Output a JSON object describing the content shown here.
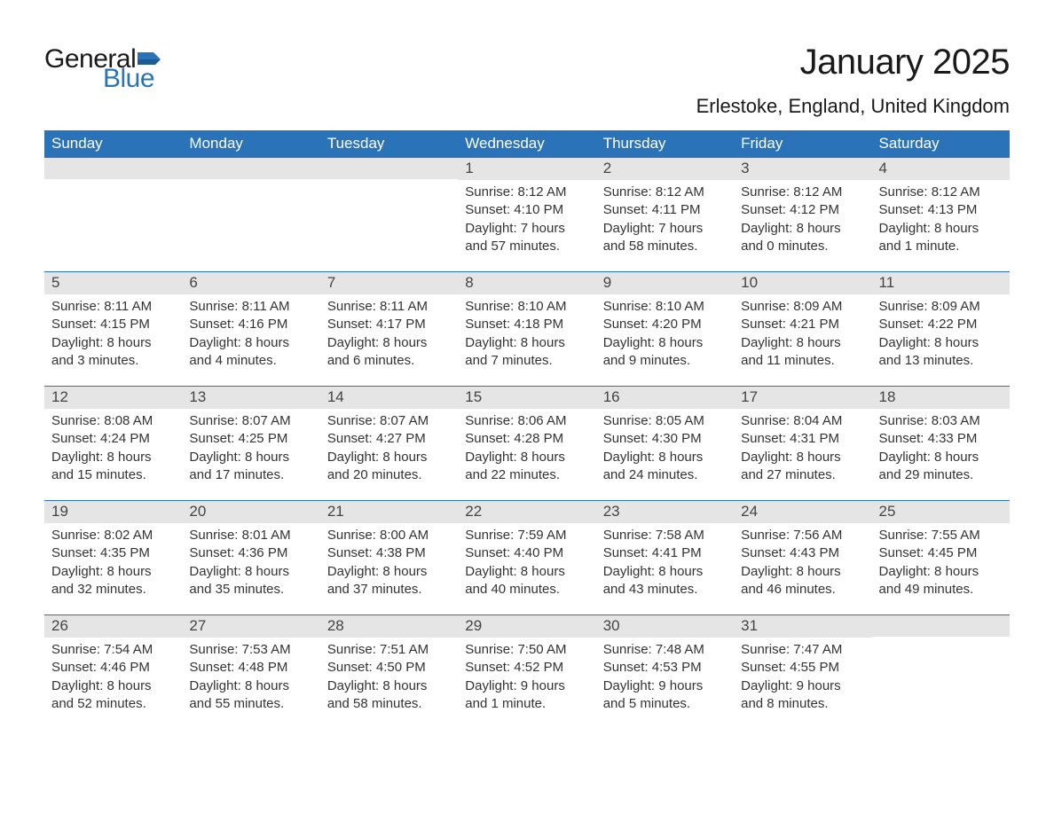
{
  "logo": {
    "text_general": "General",
    "text_blue": "Blue",
    "flag_color": "#2a73b8"
  },
  "title": "January 2025",
  "location": "Erlestoke, England, United Kingdom",
  "weekdays": [
    "Sunday",
    "Monday",
    "Tuesday",
    "Wednesday",
    "Thursday",
    "Friday",
    "Saturday"
  ],
  "colors": {
    "header_bg": "#2a73b8",
    "header_text": "#ffffff",
    "daynum_bg": "#e5e5e5",
    "daynum_text": "#444444",
    "body_text": "#333333",
    "divider": "#2a73b8"
  },
  "weeks": [
    [
      {
        "day": "",
        "lines": []
      },
      {
        "day": "",
        "lines": []
      },
      {
        "day": "",
        "lines": []
      },
      {
        "day": "1",
        "lines": [
          "Sunrise: 8:12 AM",
          "Sunset: 4:10 PM",
          "Daylight: 7 hours and 57 minutes."
        ]
      },
      {
        "day": "2",
        "lines": [
          "Sunrise: 8:12 AM",
          "Sunset: 4:11 PM",
          "Daylight: 7 hours and 58 minutes."
        ]
      },
      {
        "day": "3",
        "lines": [
          "Sunrise: 8:12 AM",
          "Sunset: 4:12 PM",
          "Daylight: 8 hours and 0 minutes."
        ]
      },
      {
        "day": "4",
        "lines": [
          "Sunrise: 8:12 AM",
          "Sunset: 4:13 PM",
          "Daylight: 8 hours and 1 minute."
        ]
      }
    ],
    [
      {
        "day": "5",
        "lines": [
          "Sunrise: 8:11 AM",
          "Sunset: 4:15 PM",
          "Daylight: 8 hours and 3 minutes."
        ]
      },
      {
        "day": "6",
        "lines": [
          "Sunrise: 8:11 AM",
          "Sunset: 4:16 PM",
          "Daylight: 8 hours and 4 minutes."
        ]
      },
      {
        "day": "7",
        "lines": [
          "Sunrise: 8:11 AM",
          "Sunset: 4:17 PM",
          "Daylight: 8 hours and 6 minutes."
        ]
      },
      {
        "day": "8",
        "lines": [
          "Sunrise: 8:10 AM",
          "Sunset: 4:18 PM",
          "Daylight: 8 hours and 7 minutes."
        ]
      },
      {
        "day": "9",
        "lines": [
          "Sunrise: 8:10 AM",
          "Sunset: 4:20 PM",
          "Daylight: 8 hours and 9 minutes."
        ]
      },
      {
        "day": "10",
        "lines": [
          "Sunrise: 8:09 AM",
          "Sunset: 4:21 PM",
          "Daylight: 8 hours and 11 minutes."
        ]
      },
      {
        "day": "11",
        "lines": [
          "Sunrise: 8:09 AM",
          "Sunset: 4:22 PM",
          "Daylight: 8 hours and 13 minutes."
        ]
      }
    ],
    [
      {
        "day": "12",
        "lines": [
          "Sunrise: 8:08 AM",
          "Sunset: 4:24 PM",
          "Daylight: 8 hours and 15 minutes."
        ]
      },
      {
        "day": "13",
        "lines": [
          "Sunrise: 8:07 AM",
          "Sunset: 4:25 PM",
          "Daylight: 8 hours and 17 minutes."
        ]
      },
      {
        "day": "14",
        "lines": [
          "Sunrise: 8:07 AM",
          "Sunset: 4:27 PM",
          "Daylight: 8 hours and 20 minutes."
        ]
      },
      {
        "day": "15",
        "lines": [
          "Sunrise: 8:06 AM",
          "Sunset: 4:28 PM",
          "Daylight: 8 hours and 22 minutes."
        ]
      },
      {
        "day": "16",
        "lines": [
          "Sunrise: 8:05 AM",
          "Sunset: 4:30 PM",
          "Daylight: 8 hours and 24 minutes."
        ]
      },
      {
        "day": "17",
        "lines": [
          "Sunrise: 8:04 AM",
          "Sunset: 4:31 PM",
          "Daylight: 8 hours and 27 minutes."
        ]
      },
      {
        "day": "18",
        "lines": [
          "Sunrise: 8:03 AM",
          "Sunset: 4:33 PM",
          "Daylight: 8 hours and 29 minutes."
        ]
      }
    ],
    [
      {
        "day": "19",
        "lines": [
          "Sunrise: 8:02 AM",
          "Sunset: 4:35 PM",
          "Daylight: 8 hours and 32 minutes."
        ]
      },
      {
        "day": "20",
        "lines": [
          "Sunrise: 8:01 AM",
          "Sunset: 4:36 PM",
          "Daylight: 8 hours and 35 minutes."
        ]
      },
      {
        "day": "21",
        "lines": [
          "Sunrise: 8:00 AM",
          "Sunset: 4:38 PM",
          "Daylight: 8 hours and 37 minutes."
        ]
      },
      {
        "day": "22",
        "lines": [
          "Sunrise: 7:59 AM",
          "Sunset: 4:40 PM",
          "Daylight: 8 hours and 40 minutes."
        ]
      },
      {
        "day": "23",
        "lines": [
          "Sunrise: 7:58 AM",
          "Sunset: 4:41 PM",
          "Daylight: 8 hours and 43 minutes."
        ]
      },
      {
        "day": "24",
        "lines": [
          "Sunrise: 7:56 AM",
          "Sunset: 4:43 PM",
          "Daylight: 8 hours and 46 minutes."
        ]
      },
      {
        "day": "25",
        "lines": [
          "Sunrise: 7:55 AM",
          "Sunset: 4:45 PM",
          "Daylight: 8 hours and 49 minutes."
        ]
      }
    ],
    [
      {
        "day": "26",
        "lines": [
          "Sunrise: 7:54 AM",
          "Sunset: 4:46 PM",
          "Daylight: 8 hours and 52 minutes."
        ]
      },
      {
        "day": "27",
        "lines": [
          "Sunrise: 7:53 AM",
          "Sunset: 4:48 PM",
          "Daylight: 8 hours and 55 minutes."
        ]
      },
      {
        "day": "28",
        "lines": [
          "Sunrise: 7:51 AM",
          "Sunset: 4:50 PM",
          "Daylight: 8 hours and 58 minutes."
        ]
      },
      {
        "day": "29",
        "lines": [
          "Sunrise: 7:50 AM",
          "Sunset: 4:52 PM",
          "Daylight: 9 hours and 1 minute."
        ]
      },
      {
        "day": "30",
        "lines": [
          "Sunrise: 7:48 AM",
          "Sunset: 4:53 PM",
          "Daylight: 9 hours and 5 minutes."
        ]
      },
      {
        "day": "31",
        "lines": [
          "Sunrise: 7:47 AM",
          "Sunset: 4:55 PM",
          "Daylight: 9 hours and 8 minutes."
        ]
      },
      {
        "day": "",
        "lines": []
      }
    ]
  ]
}
